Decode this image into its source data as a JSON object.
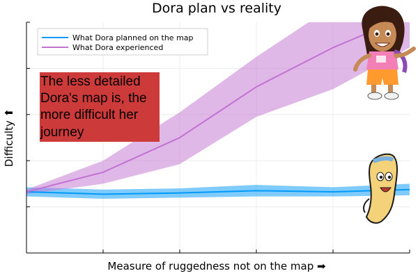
{
  "chart_data": {
    "type": "line",
    "title": "Dora plan vs reality",
    "xlabel": "Measure of ruggedness not on the map ➡",
    "ylabel": "Difficulty ⬆",
    "xlim": [
      0,
      10
    ],
    "ylim": [
      0,
      10
    ],
    "grid": true,
    "legend_position": "top-left",
    "x": [
      0,
      2,
      4,
      6,
      8,
      10
    ],
    "series": [
      {
        "name": "What Dora planned on the map",
        "color": "#009af9",
        "values": [
          2.65,
          2.55,
          2.6,
          2.7,
          2.65,
          2.75
        ],
        "band_lower": [
          2.45,
          2.35,
          2.4,
          2.45,
          2.45,
          2.5
        ],
        "band_upper": [
          2.85,
          2.75,
          2.8,
          2.95,
          2.85,
          3.0
        ]
      },
      {
        "name": "What Dora experienced",
        "color": "#c271d2",
        "values": [
          2.65,
          3.5,
          5.0,
          7.2,
          8.9,
          10.3
        ],
        "band_lower": [
          2.55,
          3.0,
          3.85,
          5.9,
          7.1,
          8.9
        ],
        "band_upper": [
          2.75,
          4.0,
          6.1,
          8.5,
          10.7,
          11.7
        ]
      }
    ],
    "annotations": [
      {
        "text_lines": [
          "The less detailed",
          "Dora's map is, the",
          "more difficult her",
          "journey"
        ],
        "color": "#cd3a3a"
      }
    ]
  },
  "images": [
    {
      "icon": "dora-character-icon"
    },
    {
      "icon": "map-character-icon"
    }
  ]
}
